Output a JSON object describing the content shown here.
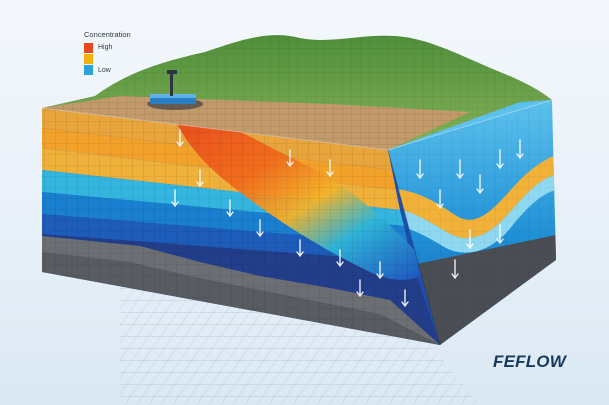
{
  "legend": {
    "title": "Concentration",
    "high_label": "High",
    "low_label": "Low",
    "colors": {
      "high": "#e8481c",
      "mid": "#f2b10f",
      "low": "#2aa3dc"
    }
  },
  "brand": {
    "logo_text": "FEFLOW"
  },
  "icons": [
    "pumping-well-icon",
    "flow-arrow-icon"
  ]
}
